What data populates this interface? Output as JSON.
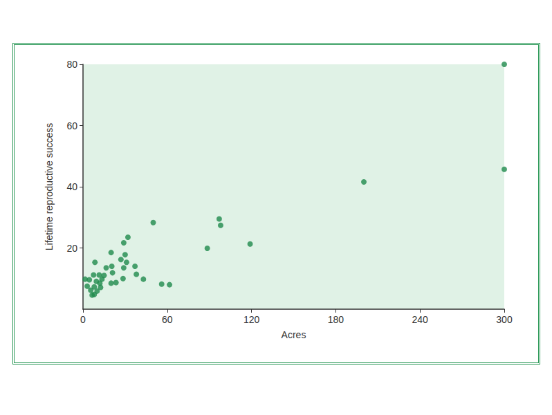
{
  "chart_data": {
    "type": "scatter",
    "x_label": "Acres",
    "y_label": "Lifetime reproductive success",
    "color": "#1f8a4c",
    "xlim": [
      0,
      300
    ],
    "xticks": [
      0,
      60,
      120,
      180,
      240,
      300
    ],
    "ylim": [
      0,
      80
    ],
    "yticks": [
      20,
      40,
      60,
      80
    ],
    "grid": false,
    "x": [
      300,
      300,
      200,
      119,
      97,
      98,
      88.5,
      50,
      56,
      61.6,
      32,
      29,
      30,
      31,
      27,
      29,
      28.5,
      37,
      38,
      43,
      20,
      20.5,
      16.5,
      21,
      20,
      23.5,
      8.5,
      1.5,
      3,
      4.5,
      5.5,
      6.5,
      8,
      7.5,
      9.5,
      10,
      11.5,
      12,
      12.5,
      13.5,
      15,
      8
    ],
    "values": [
      80,
      45.7,
      41.6,
      21.3,
      29.5,
      27.4,
      19.9,
      28.3,
      8.2,
      8,
      23.5,
      21.7,
      17.8,
      15.3,
      16.2,
      13.5,
      10,
      14,
      11.4,
      9.8,
      18.5,
      14,
      13.5,
      11.9,
      8.5,
      8.7,
      15.3,
      9.8,
      7.5,
      9.6,
      6.2,
      4.6,
      7.3,
      11.2,
      9.1,
      5.9,
      11.2,
      8.5,
      7.1,
      9.8,
      11,
      4.8
    ]
  }
}
